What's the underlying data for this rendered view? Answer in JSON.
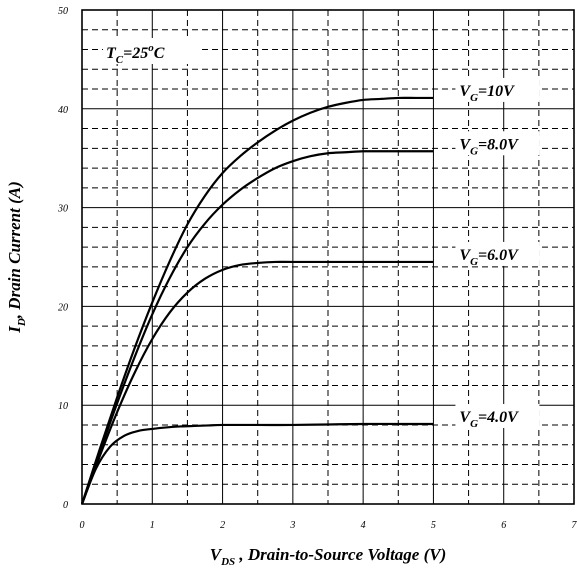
{
  "chart_data": {
    "type": "line",
    "xlabel": {
      "main": "V",
      "sub": "DS",
      "rest": " , Drain-to-Source Voltage (V)"
    },
    "ylabel": {
      "main": "I",
      "sub": "D",
      "rest": ", Drain Current (A)"
    },
    "xlim": [
      0,
      7
    ],
    "ylim": [
      0,
      50
    ],
    "x_ticks": [
      "0",
      "1",
      "2",
      "3",
      "4",
      "5",
      "6",
      "7"
    ],
    "y_ticks": [
      "0",
      "10",
      "20",
      "30",
      "40",
      "50"
    ],
    "grid": true,
    "annotation": {
      "main": "T",
      "sub": "C",
      "rest": "=25",
      "sup": "o",
      "unit": "C"
    },
    "series": [
      {
        "name": "V_G=10V",
        "label": {
          "main": "V",
          "sub": "G",
          "rest": "=10V"
        },
        "x": [
          0,
          0.25,
          0.5,
          0.75,
          1.0,
          1.25,
          1.5,
          1.75,
          2.0,
          2.25,
          2.5,
          2.75,
          3.0,
          3.25,
          3.5,
          3.75,
          4.0,
          4.25,
          4.5,
          4.75,
          5.0
        ],
        "y": [
          0,
          5.5,
          10.8,
          15.8,
          20.4,
          24.6,
          28.3,
          31.2,
          33.5,
          35.2,
          36.6,
          37.8,
          38.8,
          39.6,
          40.2,
          40.6,
          40.9,
          41.0,
          41.1,
          41.1,
          41.1
        ]
      },
      {
        "name": "V_G=8.0V",
        "label": {
          "main": "V",
          "sub": "G",
          "rest": "=8.0V"
        },
        "x": [
          0,
          0.25,
          0.5,
          0.75,
          1.0,
          1.25,
          1.5,
          1.75,
          2.0,
          2.25,
          2.5,
          2.75,
          3.0,
          3.25,
          3.5,
          3.75,
          4.0,
          4.25,
          4.5,
          4.75,
          5.0
        ],
        "y": [
          0,
          5.2,
          10.2,
          14.9,
          19.2,
          22.9,
          26.0,
          28.4,
          30.3,
          31.8,
          33.0,
          34.0,
          34.7,
          35.2,
          35.5,
          35.6,
          35.7,
          35.7,
          35.7,
          35.7,
          35.7
        ]
      },
      {
        "name": "V_G=6.0V",
        "label": {
          "main": "V",
          "sub": "G",
          "rest": "=6.0V"
        },
        "x": [
          0,
          0.25,
          0.5,
          0.75,
          1.0,
          1.25,
          1.5,
          1.75,
          2.0,
          2.25,
          2.5,
          2.75,
          3.0,
          3.5,
          4.0,
          4.5,
          5.0
        ],
        "y": [
          0,
          4.8,
          9.3,
          13.3,
          16.7,
          19.4,
          21.4,
          22.8,
          23.7,
          24.2,
          24.4,
          24.5,
          24.5,
          24.5,
          24.5,
          24.5,
          24.5
        ]
      },
      {
        "name": "V_G=4.0V",
        "label": {
          "main": "V",
          "sub": "G",
          "rest": "=4.0V"
        },
        "x": [
          0,
          0.2,
          0.4,
          0.6,
          0.8,
          1.0,
          1.2,
          1.4,
          1.6,
          1.8,
          2.0,
          2.5,
          3.0,
          3.5,
          4.0,
          4.5,
          5.0
        ],
        "y": [
          0,
          3.6,
          5.8,
          6.9,
          7.4,
          7.6,
          7.75,
          7.85,
          7.9,
          7.95,
          8.0,
          8.0,
          8.0,
          8.05,
          8.1,
          8.1,
          8.1
        ]
      }
    ]
  }
}
